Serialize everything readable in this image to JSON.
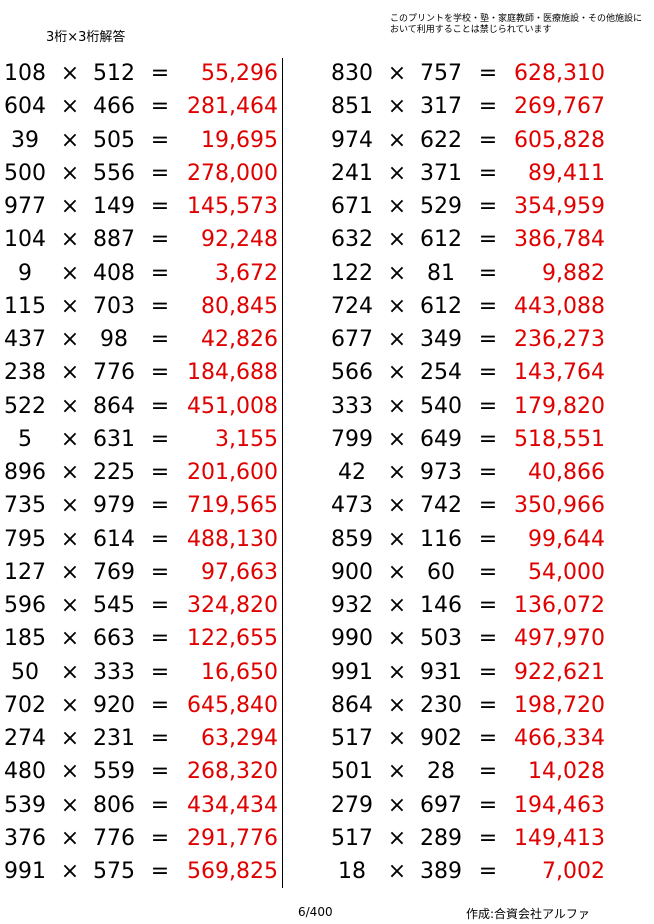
{
  "header": {
    "title": "3桁×3桁解答",
    "notice": "このプリントを学校・塾・家庭教師・医療施設・その他施設において利用することは禁じられています"
  },
  "symbols": {
    "times": "×",
    "equals": "="
  },
  "left": [
    [
      "108",
      "512",
      "55,296"
    ],
    [
      "604",
      "466",
      "281,464"
    ],
    [
      "39",
      "505",
      "19,695"
    ],
    [
      "500",
      "556",
      "278,000"
    ],
    [
      "977",
      "149",
      "145,573"
    ],
    [
      "104",
      "887",
      "92,248"
    ],
    [
      "9",
      "408",
      "3,672"
    ],
    [
      "115",
      "703",
      "80,845"
    ],
    [
      "437",
      "98",
      "42,826"
    ],
    [
      "238",
      "776",
      "184,688"
    ],
    [
      "522",
      "864",
      "451,008"
    ],
    [
      "5",
      "631",
      "3,155"
    ],
    [
      "896",
      "225",
      "201,600"
    ],
    [
      "735",
      "979",
      "719,565"
    ],
    [
      "795",
      "614",
      "488,130"
    ],
    [
      "127",
      "769",
      "97,663"
    ],
    [
      "596",
      "545",
      "324,820"
    ],
    [
      "185",
      "663",
      "122,655"
    ],
    [
      "50",
      "333",
      "16,650"
    ],
    [
      "702",
      "920",
      "645,840"
    ],
    [
      "274",
      "231",
      "63,294"
    ],
    [
      "480",
      "559",
      "268,320"
    ],
    [
      "539",
      "806",
      "434,434"
    ],
    [
      "376",
      "776",
      "291,776"
    ],
    [
      "991",
      "575",
      "569,825"
    ]
  ],
  "right": [
    [
      "830",
      "757",
      "628,310"
    ],
    [
      "851",
      "317",
      "269,767"
    ],
    [
      "974",
      "622",
      "605,828"
    ],
    [
      "241",
      "371",
      "89,411"
    ],
    [
      "671",
      "529",
      "354,959"
    ],
    [
      "632",
      "612",
      "386,784"
    ],
    [
      "122",
      "81",
      "9,882"
    ],
    [
      "724",
      "612",
      "443,088"
    ],
    [
      "677",
      "349",
      "236,273"
    ],
    [
      "566",
      "254",
      "143,764"
    ],
    [
      "333",
      "540",
      "179,820"
    ],
    [
      "799",
      "649",
      "518,551"
    ],
    [
      "42",
      "973",
      "40,866"
    ],
    [
      "473",
      "742",
      "350,966"
    ],
    [
      "859",
      "116",
      "99,644"
    ],
    [
      "900",
      "60",
      "54,000"
    ],
    [
      "932",
      "146",
      "136,072"
    ],
    [
      "990",
      "503",
      "497,970"
    ],
    [
      "991",
      "931",
      "922,621"
    ],
    [
      "864",
      "230",
      "198,720"
    ],
    [
      "517",
      "902",
      "466,334"
    ],
    [
      "501",
      "28",
      "14,028"
    ],
    [
      "279",
      "697",
      "194,463"
    ],
    [
      "517",
      "289",
      "149,413"
    ],
    [
      "18",
      "389",
      "7,002"
    ]
  ],
  "footer": {
    "page": "6/400",
    "author": "作成:合資会社アルファ"
  },
  "colors": {
    "answer": "#e00000",
    "text": "#000000"
  }
}
